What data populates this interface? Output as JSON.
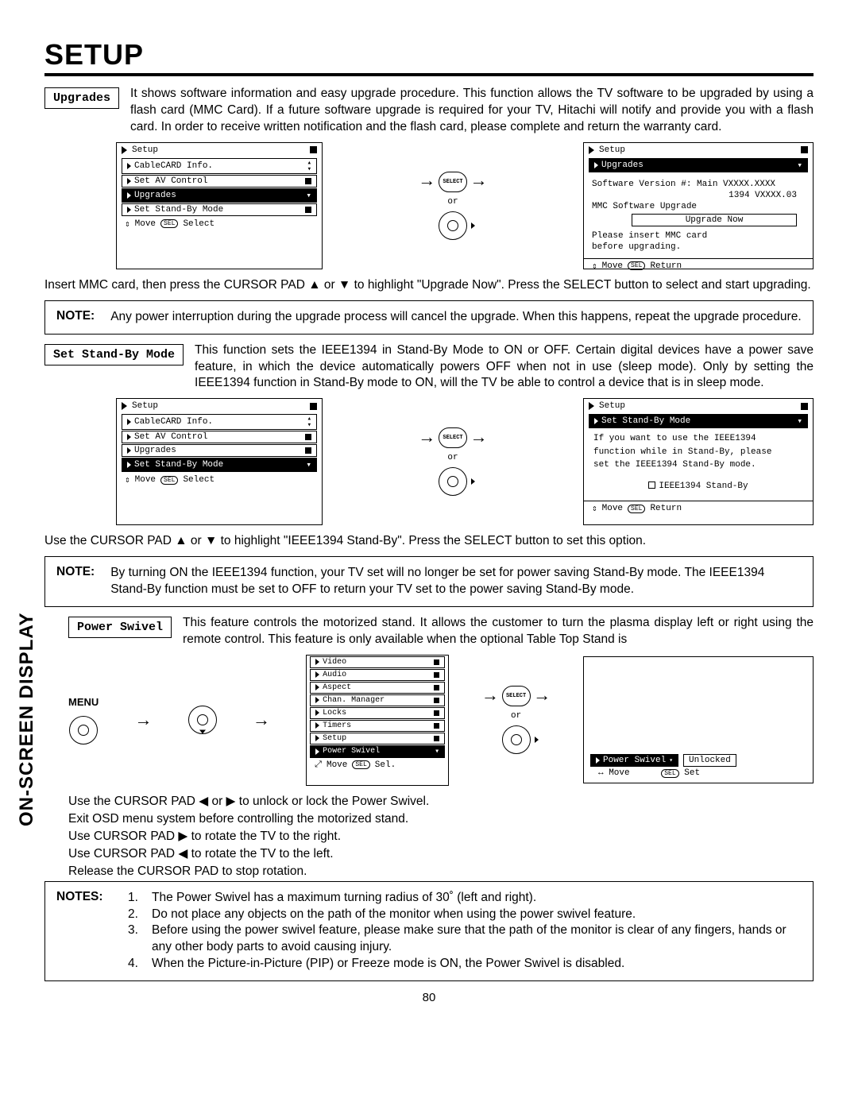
{
  "title": "SETUP",
  "side_tab": "ON-SCREEN DISPLAY",
  "page_number": "80",
  "upgrades": {
    "label": "Upgrades",
    "desc": "It shows software information and easy upgrade procedure.  This function allows the TV software to be upgraded by using a flash card (MMC Card).  If a future software upgrade is required for your TV, Hitachi will notify and provide you with a flash card.  In order to receive written notification and the flash card, please complete and return the warranty card.",
    "menu_header": "Setup",
    "menu_items": [
      "CableCARD Info.",
      "Set AV Control",
      "Upgrades",
      "Set Stand-By Mode"
    ],
    "highlight_index": 2,
    "menu_footer": "Move      Select",
    "screen_header": "Setup",
    "screen_sub": "Upgrades",
    "sw_line1": "Software Version #: Main  VXXXX.XXXX",
    "sw_line2": "1394  VXXXX.03",
    "mmc_line": "MMC Software Upgrade",
    "upgrade_btn": "Upgrade Now",
    "insert1": "Please insert MMC card",
    "insert2": "before upgrading.",
    "screen_footer": "Move      Return",
    "post_text": "Insert MMC card, then press the CURSOR PAD ▲ or ▼ to highlight \"Upgrade Now\".  Press the SELECT button to select and start upgrading.",
    "note_label": "NOTE:",
    "note_text": "Any power interruption during the upgrade process will cancel the upgrade.  When this happens, repeat the upgrade procedure."
  },
  "standby": {
    "label": "Set Stand-By Mode",
    "desc": "This function sets the IEEE1394 in Stand-By Mode to ON or OFF.  Certain digital devices have a power save feature, in which the device automatically powers OFF when not in use (sleep mode).  Only by setting the IEEE1394 function in Stand-By mode to ON, will the TV be able to control a device that is in sleep mode.",
    "menu_header": "Setup",
    "menu_items": [
      "CableCARD Info.",
      "Set AV Control",
      "Upgrades",
      "Set Stand-By Mode"
    ],
    "highlight_index": 3,
    "menu_footer": "Move      Select",
    "screen_header": "Setup",
    "screen_sub": "Set Stand-By Mode",
    "body1": "If you want to use the IEEE1394",
    "body2": "function while in Stand-By, please",
    "body3": "set the IEEE1394 Stand-By mode.",
    "check_label": "IEEE1394 Stand-By",
    "screen_footer": "Move      Return",
    "post_text": "Use the CURSOR PAD ▲ or ▼ to highlight \"IEEE1394 Stand-By\".  Press the SELECT button to set this option.",
    "note_label": "NOTE:",
    "note_text": "By turning ON the IEEE1394 function, your TV set will no longer be set for power saving Stand-By mode.  The IEEE1394 Stand-By function must be set to OFF to return your TV set to the power saving Stand-By mode."
  },
  "swivel": {
    "label": "Power Swivel",
    "desc": "This feature controls the motorized stand.  It allows the customer to turn the plasma display left or right using the remote control. This feature is only available when the optional Table Top Stand is",
    "menu_label": "MENU",
    "menu_items": [
      "Video",
      "Audio",
      "Aspect",
      "Chan. Manager",
      "Locks",
      "Timers",
      "Setup",
      "Power Swivel"
    ],
    "highlight_index": 7,
    "menu_footer": "Move      Sel.",
    "ps_label": "Power Swivel",
    "ps_status": "Unlocked",
    "ps_footer": "Move          Set",
    "lines": [
      "Use the CURSOR PAD ◀ or ▶ to unlock or lock the Power Swivel.",
      "Exit OSD menu system before controlling the motorized stand.",
      "Use CURSOR PAD ▶ to rotate the TV to the right.",
      "Use CURSOR PAD ◀ to rotate the TV to the left.",
      "Release the CURSOR PAD to stop rotation."
    ],
    "notes_label": "NOTES:",
    "notes": [
      "The Power Swivel has a maximum turning radius of 30˚ (left and right).",
      "Do not place any objects on the path of the monitor when using the power swivel feature.",
      "Before using the power swivel feature, please make sure that the path of the monitor is clear of any fingers, hands or any other body parts to avoid causing injury.",
      "When the Picture-in-Picture (PIP) or Freeze mode is ON, the Power Swivel is disabled."
    ]
  },
  "or_label": "or",
  "sel_label": "SELECT",
  "sel_pill": "SEL",
  "updown_glyph": "⇕",
  "lr_glyph": "↔"
}
